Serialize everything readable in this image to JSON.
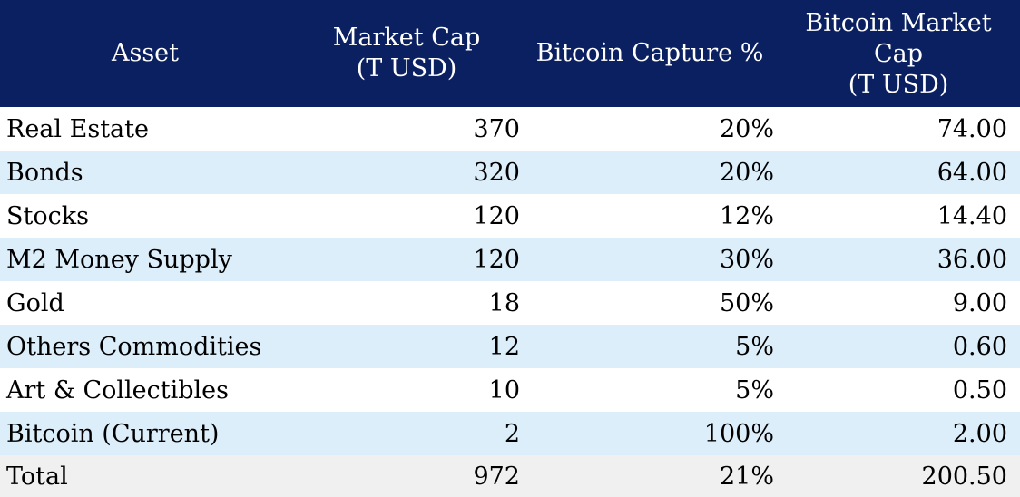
{
  "headers": {
    "asset": "Asset",
    "market_cap": "Market Cap\n(T USD)",
    "capture": "Bitcoin Capture %",
    "btc_market_cap": "Bitcoin Market\nCap\n(T USD)"
  },
  "rows": [
    {
      "asset": "Real Estate",
      "market_cap": "370",
      "capture": "20%",
      "btc_cap": "74.00"
    },
    {
      "asset": "Bonds",
      "market_cap": "320",
      "capture": "20%",
      "btc_cap": "64.00"
    },
    {
      "asset": "Stocks",
      "market_cap": "120",
      "capture": "12%",
      "btc_cap": "14.40"
    },
    {
      "asset": "M2 Money Supply",
      "market_cap": "120",
      "capture": "30%",
      "btc_cap": "36.00"
    },
    {
      "asset": "Gold",
      "market_cap": "18",
      "capture": "50%",
      "btc_cap": "9.00"
    },
    {
      "asset": "Others Commodities",
      "market_cap": "12",
      "capture": "5%",
      "btc_cap": "0.60"
    },
    {
      "asset": "Art & Collectibles",
      "market_cap": "10",
      "capture": "5%",
      "btc_cap": "0.50"
    },
    {
      "asset": "Bitcoin (Current)",
      "market_cap": "2",
      "capture": "100%",
      "btc_cap": "2.00"
    }
  ],
  "total": {
    "asset": "Total",
    "market_cap": "972",
    "capture": "21%",
    "btc_cap": "200.50"
  },
  "colors": {
    "header_bg": "#0b2060",
    "header_text": "#ffffff",
    "alt_row_bg": "#ddeefb",
    "total_row_bg": "#f0f0f0"
  }
}
